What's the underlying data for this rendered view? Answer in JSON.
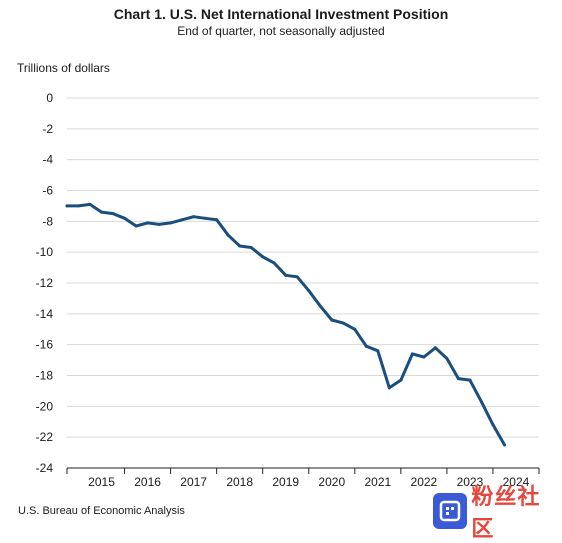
{
  "chart_data": {
    "type": "line",
    "title": "Chart 1. U.S. Net International Investment Position",
    "subtitle": "End of quarter, not seasonally adjusted",
    "ylabel": "Trillions of dollars",
    "xlabel": "",
    "ylim": [
      -24,
      0
    ],
    "yticks": [
      0,
      -2,
      -4,
      -6,
      -8,
      -10,
      -12,
      -14,
      -16,
      -18,
      -20,
      -22,
      -24
    ],
    "xlim": [
      2014.5,
      2024.75
    ],
    "xticks": [
      "2015",
      "2016",
      "2017",
      "2018",
      "2019",
      "2020",
      "2021",
      "2022",
      "2023",
      "2024"
    ],
    "grid": "horizontal",
    "legend": "none",
    "series": [
      {
        "color": "#1a4e7e",
        "x": [
          2014.5,
          2014.75,
          2015.0,
          2015.25,
          2015.5,
          2015.75,
          2016.0,
          2016.25,
          2016.5,
          2016.75,
          2017.0,
          2017.25,
          2017.5,
          2017.75,
          2018.0,
          2018.25,
          2018.5,
          2018.75,
          2019.0,
          2019.25,
          2019.5,
          2019.75,
          2020.0,
          2020.25,
          2020.5,
          2020.75,
          2021.0,
          2021.25,
          2021.5,
          2021.75,
          2022.0,
          2022.25,
          2022.5,
          2022.75,
          2023.0,
          2023.25,
          2023.5,
          2023.75,
          2024.0,
          2024.25
        ],
        "values": [
          -7.0,
          -7.0,
          -6.9,
          -7.4,
          -7.5,
          -7.8,
          -8.3,
          -8.1,
          -8.2,
          -8.1,
          -7.9,
          -7.7,
          -7.8,
          -7.9,
          -8.9,
          -9.6,
          -9.7,
          -10.3,
          -10.7,
          -11.5,
          -11.6,
          -12.5,
          -13.5,
          -14.4,
          -14.6,
          -15.0,
          -16.1,
          -16.4,
          -18.8,
          -18.3,
          -16.6,
          -16.8,
          -16.2,
          -16.9,
          -18.2,
          -18.3,
          -19.7,
          -21.2,
          -22.5,
          null
        ]
      }
    ]
  },
  "footer": {
    "source": "U.S. Bureau of Economic Analysis"
  },
  "watermark": {
    "text": "粉丝社区",
    "icon": "site-logo-icon"
  }
}
